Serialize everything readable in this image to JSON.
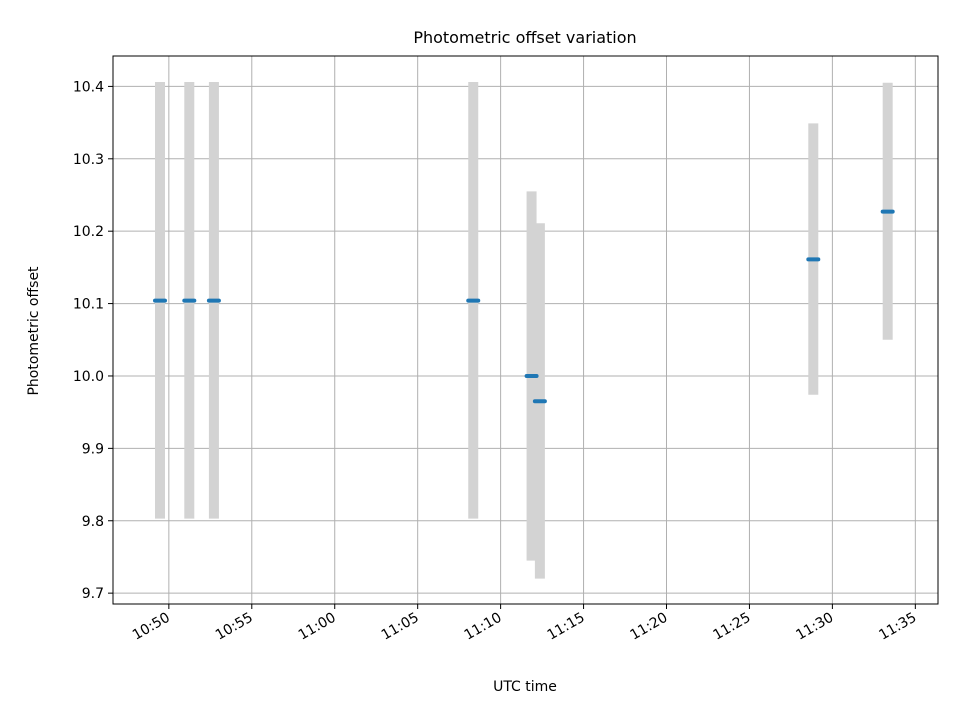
{
  "chart_data": {
    "type": "scatter",
    "title": "Photometric offset variation",
    "xlabel": "UTC time",
    "ylabel": "Photometric offset",
    "ylim": [
      9.685,
      10.442
    ],
    "xlim": [
      "10:46:38",
      "11:36:22"
    ],
    "grid": true,
    "x_ticks": [
      "10:50",
      "10:55",
      "11:00",
      "11:05",
      "11:10",
      "11:15",
      "11:20",
      "11:25",
      "11:30",
      "11:35"
    ],
    "y_ticks": [
      "9.7",
      "9.8",
      "9.9",
      "10.0",
      "10.1",
      "10.2",
      "10.3",
      "10.4"
    ],
    "series": [
      {
        "marker_color": "#1f77b4",
        "errorbar_color": "#d3d3d3",
        "points": [
          {
            "x": "10:49:28",
            "y": 10.104,
            "ylow": 9.803,
            "yhigh": 10.406
          },
          {
            "x": "10:51:14",
            "y": 10.104,
            "ylow": 9.803,
            "yhigh": 10.406
          },
          {
            "x": "10:52:43",
            "y": 10.104,
            "ylow": 9.803,
            "yhigh": 10.406
          },
          {
            "x": "11:08:21",
            "y": 10.104,
            "ylow": 9.803,
            "yhigh": 10.406
          },
          {
            "x": "11:11:52",
            "y": 10.0,
            "ylow": 9.745,
            "yhigh": 10.255
          },
          {
            "x": "11:12:22",
            "y": 9.965,
            "ylow": 9.72,
            "yhigh": 10.211
          },
          {
            "x": "11:28:51",
            "y": 10.161,
            "ylow": 9.974,
            "yhigh": 10.349
          },
          {
            "x": "11:33:20",
            "y": 10.227,
            "ylow": 10.05,
            "yhigh": 10.405
          }
        ]
      }
    ]
  }
}
